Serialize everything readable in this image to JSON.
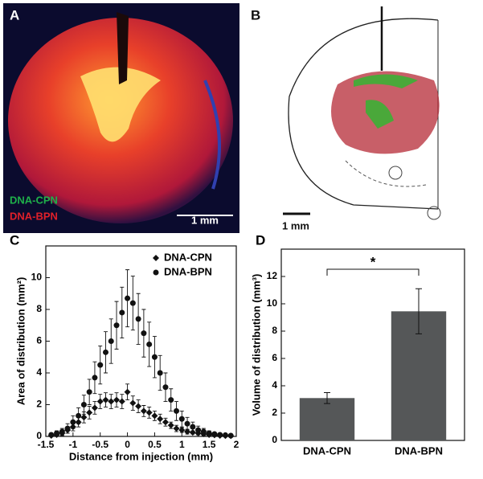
{
  "panels": [
    {
      "label": "A",
      "legend": [
        "DNA-CPN",
        "DNA-BPN"
      ],
      "scale": "1 mm"
    },
    {
      "label": "B",
      "scale": "1 mm"
    }
  ],
  "chart_data": [
    {
      "type": "scatter",
      "label": "C",
      "xlabel": "Distance from injection (mm)",
      "ylabel": "Area of distribution (mm²)",
      "x": [
        -1.4,
        -1.3,
        -1.2,
        -1.1,
        -1.0,
        -0.9,
        -0.8,
        -0.7,
        -0.6,
        -0.5,
        -0.4,
        -0.3,
        -0.2,
        -0.1,
        0,
        0.1,
        0.2,
        0.3,
        0.4,
        0.5,
        0.6,
        0.7,
        0.8,
        0.9,
        1.0,
        1.1,
        1.2,
        1.3,
        1.4,
        1.5,
        1.6,
        1.7,
        1.8,
        1.9
      ],
      "series": [
        {
          "name": "DNA-CPN",
          "marker": "diamond",
          "color": "#111111",
          "values": [
            0.05,
            0.1,
            0.2,
            0.4,
            0.6,
            0.9,
            1.2,
            1.5,
            1.8,
            2.2,
            2.3,
            2.2,
            2.3,
            2.2,
            2.8,
            2.1,
            1.9,
            1.6,
            1.5,
            1.3,
            1.1,
            0.9,
            0.7,
            0.5,
            0.4,
            0.3,
            0.25,
            0.2,
            0.15,
            0.1,
            0.08,
            0.05,
            0.04,
            0.03
          ],
          "errors": [
            0.05,
            0.1,
            0.15,
            0.2,
            0.25,
            0.3,
            0.35,
            0.4,
            0.4,
            0.45,
            0.45,
            0.45,
            0.45,
            0.45,
            0.5,
            0.45,
            0.4,
            0.35,
            0.35,
            0.3,
            0.3,
            0.25,
            0.2,
            0.2,
            0.15,
            0.15,
            0.1,
            0.1,
            0.1,
            0.05,
            0.05,
            0.05,
            0.03,
            0.03
          ]
        },
        {
          "name": "DNA-BPN",
          "marker": "circle",
          "color": "#111111",
          "values": [
            0.1,
            0.2,
            0.3,
            0.5,
            0.9,
            1.3,
            2.0,
            2.8,
            3.7,
            4.5,
            5.3,
            6.0,
            7.0,
            7.8,
            8.7,
            8.4,
            7.4,
            6.5,
            5.8,
            5.0,
            4.0,
            3.1,
            2.3,
            1.6,
            1.1,
            0.8,
            0.6,
            0.4,
            0.3,
            0.2,
            0.15,
            0.1,
            0.08,
            0.05
          ],
          "errors": [
            0.1,
            0.15,
            0.2,
            0.3,
            0.4,
            0.5,
            0.6,
            0.8,
            1.0,
            1.2,
            1.3,
            1.4,
            1.5,
            1.6,
            1.8,
            1.7,
            1.6,
            1.5,
            1.4,
            1.3,
            1.1,
            0.9,
            0.7,
            0.6,
            0.5,
            0.4,
            0.3,
            0.25,
            0.2,
            0.15,
            0.1,
            0.1,
            0.05,
            0.05
          ]
        }
      ],
      "xlim": [
        -1.5,
        2
      ],
      "xticks": [
        -1.5,
        -1,
        -0.5,
        0,
        0.5,
        1,
        1.5,
        2
      ],
      "ylim": [
        0,
        12
      ],
      "yticks": [
        0,
        2,
        4,
        6,
        8,
        10
      ],
      "legend": "upper right"
    },
    {
      "type": "bar",
      "label": "D",
      "ylabel": "Volume of distribution (mm³)",
      "categories": [
        "DNA-CPN",
        "DNA-BPN"
      ],
      "values": [
        3.1,
        9.45
      ],
      "errors": [
        0.4,
        1.65
      ],
      "color": "#555758",
      "ylim": [
        0,
        14
      ],
      "yticks": [
        0,
        2,
        4,
        6,
        8,
        10,
        12
      ],
      "annotation": "*"
    }
  ]
}
